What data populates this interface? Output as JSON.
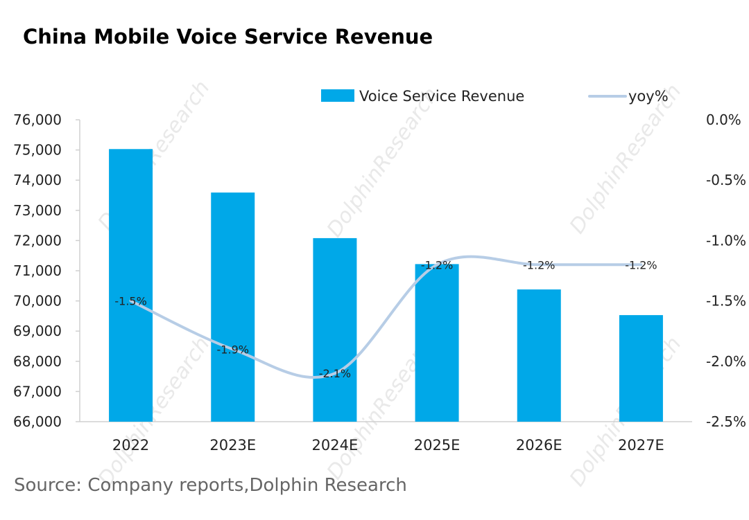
{
  "chart_data": {
    "type": "bar",
    "title": "China Mobile Voice Service Revenue",
    "categories": [
      "2022",
      "2023E",
      "2024E",
      "2025E",
      "2026E",
      "2027E"
    ],
    "series": [
      {
        "name": "Voice Service Revenue",
        "type": "bar",
        "axis": "left",
        "color": "#00A8E8",
        "values": [
          75030,
          73590,
          72080,
          71220,
          70380,
          69530
        ]
      },
      {
        "name": "yoy%",
        "type": "line",
        "axis": "right",
        "color": "#B7CDE6",
        "values": [
          -1.5,
          -1.9,
          -2.1,
          -1.2,
          -1.2,
          -1.2
        ],
        "labels": [
          "-1.5%",
          "-1.9%",
          "-2.1%",
          "-1.2%",
          "-1.2%",
          "-1.2%"
        ]
      }
    ],
    "y_left": {
      "min": 66000,
      "max": 76000,
      "step": 1000,
      "ticks": [
        "66,000",
        "67,000",
        "68,000",
        "69,000",
        "70,000",
        "71,000",
        "72,000",
        "73,000",
        "74,000",
        "75,000",
        "76,000"
      ]
    },
    "y_right": {
      "min": -2.5,
      "max": 0.0,
      "step": 0.5,
      "ticks": [
        "-2.5%",
        "-2.0%",
        "-1.5%",
        "-1.0%",
        "-0.5%",
        "0.0%"
      ]
    },
    "legend_position": "top-right",
    "grid": false
  },
  "source": "Source: Company reports,Dolphin Research",
  "watermark": "DolphinResearch"
}
